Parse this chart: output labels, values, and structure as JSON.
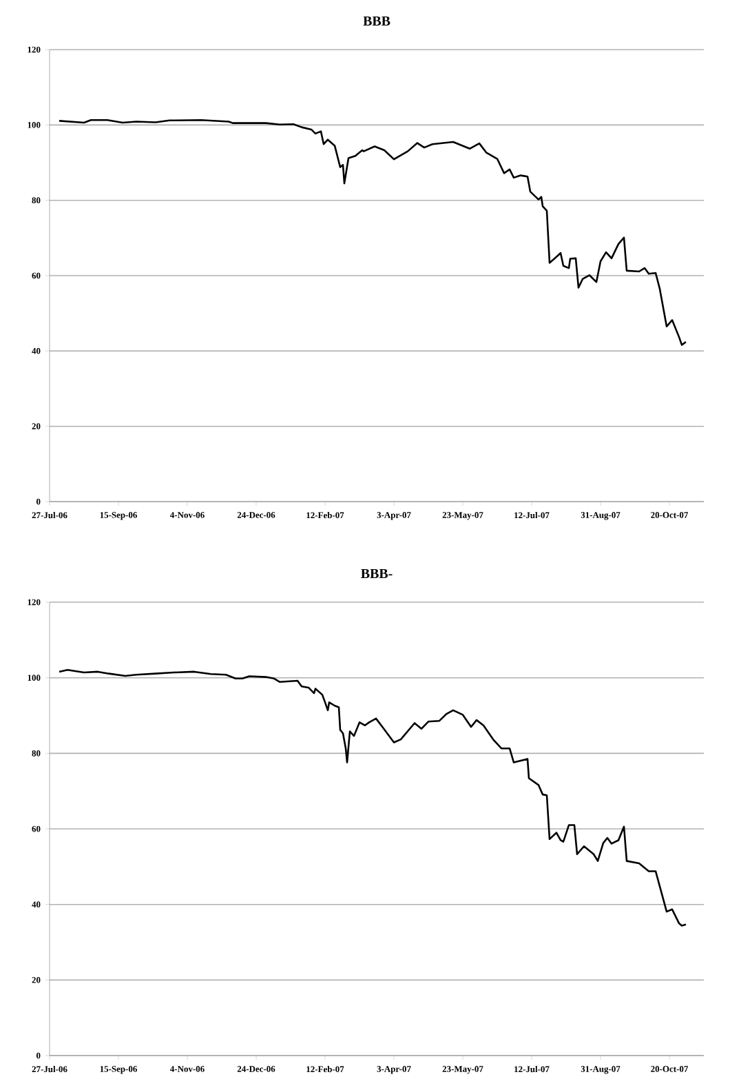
{
  "chart_data": [
    {
      "type": "line",
      "title": "BBB",
      "grid": "y",
      "xlim": [
        "2006-07-27",
        "2007-11-14"
      ],
      "ylim": [
        0,
        120
      ],
      "yticks": [
        0,
        20,
        40,
        60,
        80,
        100,
        120
      ],
      "xticks": [
        {
          "value": "2006-07-27",
          "label": "27-Jul-06"
        },
        {
          "value": "2006-09-15",
          "label": "15-Sep-06"
        },
        {
          "value": "2006-11-04",
          "label": "4-Nov-06"
        },
        {
          "value": "2006-12-24",
          "label": "24-Dec-06"
        },
        {
          "value": "2007-02-12",
          "label": "12-Feb-07"
        },
        {
          "value": "2007-04-03",
          "label": "3-Apr-07"
        },
        {
          "value": "2007-05-23",
          "label": "23-May-07"
        },
        {
          "value": "2007-07-12",
          "label": "12-Jul-07"
        },
        {
          "value": "2007-08-31",
          "label": "31-Aug-07"
        },
        {
          "value": "2007-10-20",
          "label": "20-Oct-07"
        }
      ],
      "series": [
        {
          "color": "#000000",
          "x": [
            "2006-08-03",
            "2006-08-21",
            "2006-08-26",
            "2006-09-07",
            "2006-09-18",
            "2006-09-28",
            "2006-10-12",
            "2006-10-22",
            "2006-11-14",
            "2006-12-04",
            "2006-12-07",
            "2006-12-31",
            "2007-01-10",
            "2007-01-20",
            "2007-01-26",
            "2007-02-02",
            "2007-02-05",
            "2007-02-09",
            "2007-02-11",
            "2007-02-14",
            "2007-02-19",
            "2007-02-23",
            "2007-02-25",
            "2007-02-26",
            "2007-03-01",
            "2007-03-06",
            "2007-03-11",
            "2007-03-12",
            "2007-03-20",
            "2007-03-27",
            "2007-04-03",
            "2007-04-13",
            "2007-04-20",
            "2007-04-25",
            "2007-05-01",
            "2007-05-16",
            "2007-05-28",
            "2007-06-04",
            "2007-06-09",
            "2007-06-17",
            "2007-06-22",
            "2007-06-26",
            "2007-06-29",
            "2007-07-04",
            "2007-07-09",
            "2007-07-11",
            "2007-07-17",
            "2007-07-19",
            "2007-07-20",
            "2007-07-23",
            "2007-07-25",
            "2007-07-30",
            "2007-08-02",
            "2007-08-04",
            "2007-08-08",
            "2007-08-09",
            "2007-08-13",
            "2007-08-15",
            "2007-08-18",
            "2007-08-23",
            "2007-08-28",
            "2007-08-31",
            "2007-09-04",
            "2007-09-08",
            "2007-09-13",
            "2007-09-17",
            "2007-09-19",
            "2007-09-28",
            "2007-10-02",
            "2007-10-05",
            "2007-10-10",
            "2007-10-13",
            "2007-10-18",
            "2007-10-22",
            "2007-10-27",
            "2007-10-29",
            "2007-11-01"
          ],
          "values": [
            101.1,
            100.6,
            101.3,
            101.3,
            100.6,
            100.9,
            100.7,
            101.2,
            101.3,
            100.9,
            100.5,
            100.5,
            100.1,
            100.2,
            99.4,
            98.8,
            97.7,
            98.3,
            94.9,
            96.1,
            94.5,
            88.8,
            89.4,
            84.5,
            91.2,
            91.8,
            93.3,
            93.0,
            94.3,
            93.3,
            90.9,
            93.0,
            95.2,
            94.0,
            94.9,
            95.5,
            93.7,
            95.1,
            92.7,
            91.0,
            87.2,
            88.2,
            86.0,
            86.6,
            86.3,
            82.3,
            80.2,
            80.9,
            78.4,
            77.2,
            63.4,
            65.0,
            66.0,
            62.6,
            62.0,
            64.5,
            64.6,
            56.8,
            59.1,
            60.1,
            58.3,
            63.8,
            66.2,
            64.6,
            68.4,
            70.1,
            61.3,
            61.1,
            62.0,
            60.5,
            60.7,
            56.5,
            46.5,
            48.2,
            43.7,
            41.6,
            42.4
          ]
        }
      ]
    },
    {
      "type": "line",
      "title": "BBB-",
      "grid": "y",
      "xlim": [
        "2006-07-27",
        "2007-11-14"
      ],
      "ylim": [
        0,
        120
      ],
      "yticks": [
        0,
        20,
        40,
        60,
        80,
        100,
        120
      ],
      "xticks": [
        {
          "value": "2006-07-27",
          "label": "27-Jul-06"
        },
        {
          "value": "2006-09-15",
          "label": "15-Sep-06"
        },
        {
          "value": "2006-11-04",
          "label": "4-Nov-06"
        },
        {
          "value": "2006-12-24",
          "label": "24-Dec-06"
        },
        {
          "value": "2007-02-12",
          "label": "12-Feb-07"
        },
        {
          "value": "2007-04-03",
          "label": "3-Apr-07"
        },
        {
          "value": "2007-05-23",
          "label": "23-May-07"
        },
        {
          "value": "2007-07-12",
          "label": "12-Jul-07"
        },
        {
          "value": "2007-08-31",
          "label": "31-Aug-07"
        },
        {
          "value": "2007-10-20",
          "label": "20-Oct-07"
        }
      ],
      "series": [
        {
          "color": "#000000",
          "x": [
            "2006-08-03",
            "2006-08-09",
            "2006-08-21",
            "2006-08-31",
            "2006-09-08",
            "2006-09-20",
            "2006-09-28",
            "2006-10-12",
            "2006-10-25",
            "2006-11-09",
            "2006-11-21",
            "2006-12-02",
            "2006-12-09",
            "2006-12-14",
            "2006-12-19",
            "2006-12-31",
            "2007-01-06",
            "2007-01-10",
            "2007-01-23",
            "2007-01-26",
            "2007-01-31",
            "2007-02-04",
            "2007-02-05",
            "2007-02-10",
            "2007-02-12",
            "2007-02-14",
            "2007-02-15",
            "2007-02-19",
            "2007-02-22",
            "2007-02-23",
            "2007-02-25",
            "2007-02-27",
            "2007-02-28",
            "2007-03-02",
            "2007-03-05",
            "2007-03-09",
            "2007-03-13",
            "2007-03-16",
            "2007-03-21",
            "2007-03-26",
            "2007-04-03",
            "2007-04-08",
            "2007-04-18",
            "2007-04-23",
            "2007-04-28",
            "2007-05-06",
            "2007-05-11",
            "2007-05-16",
            "2007-05-23",
            "2007-05-29",
            "2007-06-02",
            "2007-06-07",
            "2007-06-14",
            "2007-06-20",
            "2007-06-26",
            "2007-06-29",
            "2007-07-09",
            "2007-07-10",
            "2007-07-17",
            "2007-07-20",
            "2007-07-23",
            "2007-07-25",
            "2007-07-30",
            "2007-08-02",
            "2007-08-04",
            "2007-08-08",
            "2007-08-12",
            "2007-08-14",
            "2007-08-19",
            "2007-08-26",
            "2007-08-29",
            "2007-09-02",
            "2007-09-05",
            "2007-09-08",
            "2007-09-13",
            "2007-09-17",
            "2007-09-19",
            "2007-09-28",
            "2007-10-05",
            "2007-10-10",
            "2007-10-13",
            "2007-10-18",
            "2007-10-22",
            "2007-10-27",
            "2007-10-29",
            "2007-11-01"
          ],
          "values": [
            101.6,
            102.1,
            101.4,
            101.6,
            101.1,
            100.5,
            100.8,
            101.1,
            101.4,
            101.6,
            101.0,
            100.8,
            99.8,
            99.8,
            100.4,
            100.2,
            99.8,
            98.9,
            99.2,
            97.7,
            97.4,
            95.9,
            97.1,
            95.5,
            93.5,
            91.4,
            93.5,
            92.6,
            92.2,
            86.2,
            85.3,
            81.3,
            77.6,
            85.8,
            84.6,
            88.2,
            87.4,
            88.2,
            89.2,
            86.8,
            82.9,
            83.7,
            88.0,
            86.5,
            88.4,
            88.6,
            90.4,
            91.4,
            90.2,
            87.0,
            88.8,
            87.4,
            83.7,
            81.3,
            81.3,
            77.6,
            78.5,
            73.4,
            71.6,
            69.1,
            68.9,
            57.3,
            59.0,
            57.0,
            56.6,
            61.0,
            61.0,
            53.3,
            55.4,
            53.3,
            51.5,
            56.3,
            57.6,
            56.1,
            57.0,
            60.6,
            51.5,
            50.9,
            48.8,
            48.8,
            44.8,
            38.1,
            38.7,
            35.0,
            34.4,
            34.7
          ]
        }
      ]
    }
  ]
}
